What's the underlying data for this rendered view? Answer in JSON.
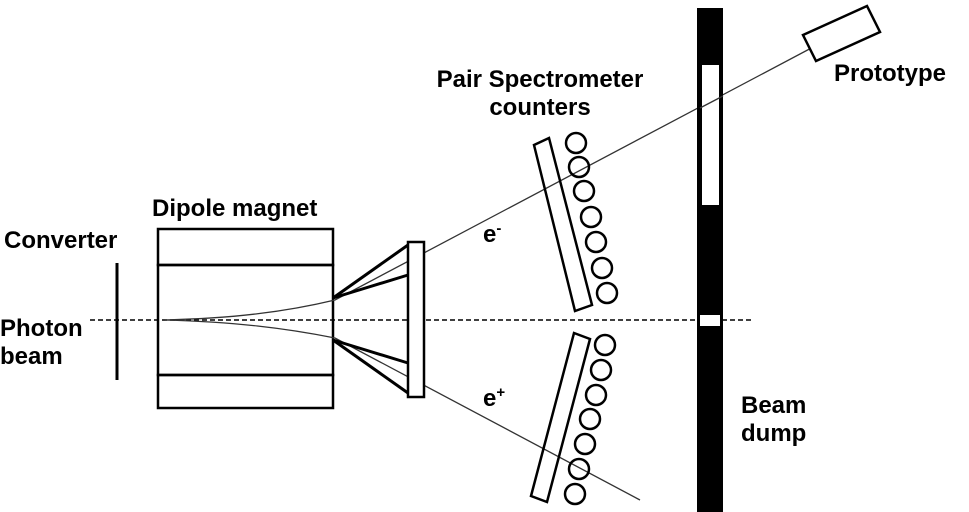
{
  "labels": {
    "pair_spectrometer": [
      "Pair Spectrometer",
      "counters"
    ],
    "prototype": "Prototype",
    "dipole_magnet": "Dipole magnet",
    "converter": "Converter",
    "photon_beam": [
      "Photon",
      "beam"
    ],
    "electron_base": "e",
    "electron_sup": "-",
    "positron_base": "e",
    "positron_sup": "+",
    "beam_dump": [
      "Beam",
      "dump"
    ]
  },
  "colors": {
    "ink": "#000000",
    "thin_line": "#333333",
    "background": "#ffffff"
  }
}
